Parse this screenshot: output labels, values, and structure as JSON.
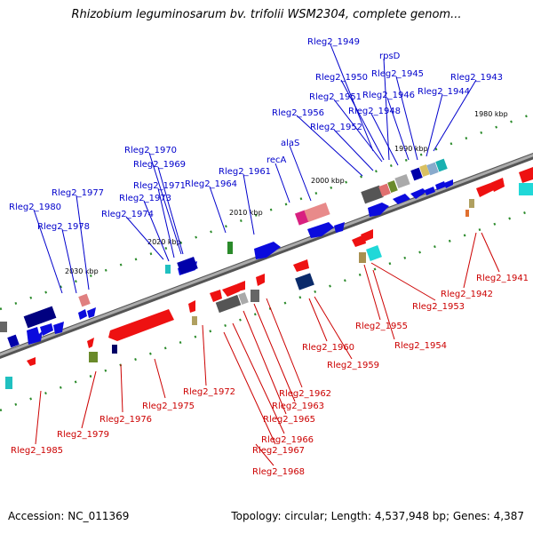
{
  "title": "Rhizobium leguminosarum bv. trifolii WSM2304, complete genom...",
  "footer": {
    "accession": "Accession: NC_011369",
    "summary": "Topology: circular; Length: 4,537,948 bp; Genes: 4,387"
  },
  "colors": {
    "forward_label": "#0000cc",
    "reverse_label": "#cc0000",
    "forward_gene": "#0000ee",
    "reverse_gene": "#ee0000",
    "backbone": "#888888",
    "gc_marks": "#228822"
  },
  "scale": {
    "ticks": [
      {
        "label": "1980 kbp"
      },
      {
        "label": "1990 kbp"
      },
      {
        "label": "2000 kbp"
      },
      {
        "label": "2010 kbp"
      },
      {
        "label": "2020 kbp"
      },
      {
        "label": "2030 kbp"
      }
    ]
  },
  "forward_labels": [
    "Rleg2_1949",
    "rpsD",
    "Rleg2_1950",
    "Rleg2_1945",
    "Rleg2_1943",
    "Rleg2_1944",
    "Rleg2_1951",
    "Rleg2_1946",
    "Rleg2_1948",
    "Rleg2_1956",
    "Rleg2_1952",
    "alaS",
    "recA",
    "Rleg2_1970",
    "Rleg2_1969",
    "Rleg2_1961",
    "Rleg2_1971",
    "Rleg2_1964",
    "Rleg2_1973",
    "Rleg2_1977",
    "Rleg2_1974",
    "Rleg2_1980",
    "Rleg2_1978"
  ],
  "reverse_labels": [
    "Rleg2_1941",
    "Rleg2_1942",
    "Rleg2_1953",
    "Rleg2_1955",
    "Rleg2_1954",
    "Rleg2_1960",
    "Rleg2_1959",
    "Rleg2_1972",
    "Rleg2_1962",
    "Rleg2_1963",
    "Rleg2_1975",
    "Rleg2_1965",
    "Rleg2_1976",
    "Rleg2_1966",
    "Rleg2_1979",
    "Rleg2_1967",
    "Rleg2_1985",
    "Rleg2_1968"
  ]
}
